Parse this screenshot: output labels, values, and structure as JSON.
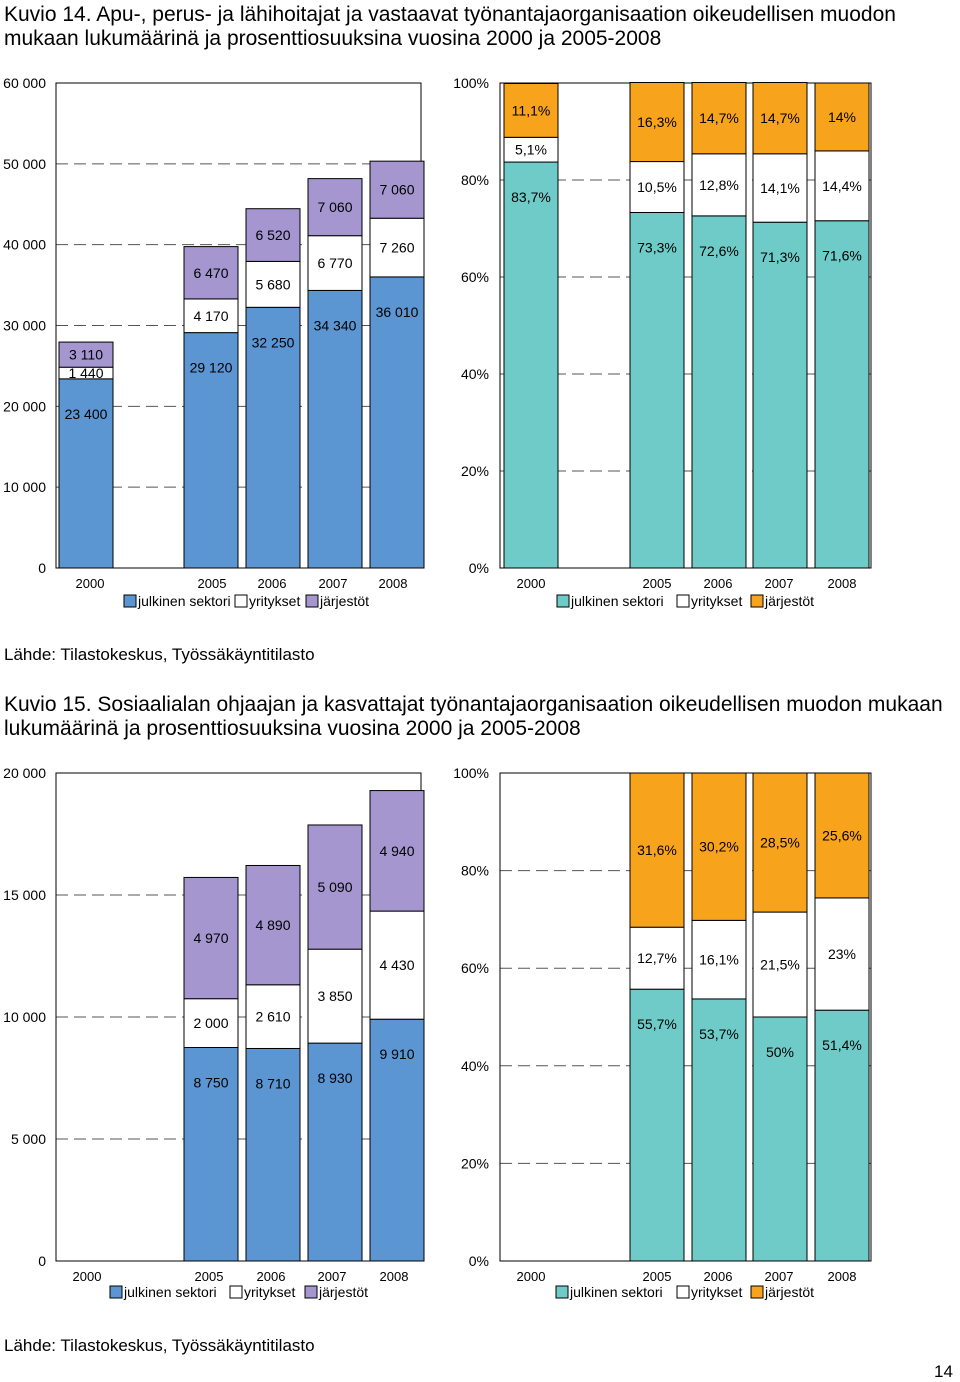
{
  "figure1": {
    "title_prefix": "Kuvio 14.",
    "title_text": "Apu-, perus- ja lähihoitajat ja vastaavat työnantajaorganisaation oikeudellisen muodon mukaan lukumäärinä ja prosenttiosuuksina vuosina 2000 ja 2005-2008",
    "source": "Lähde: Tilastokeskus, Työssäkäyntitilasto"
  },
  "figure2": {
    "title_prefix": "Kuvio 15.",
    "title_text": "Sosiaalialan ohjaajan ja kasvattajat työnantajaorganisaation oikeudellisen muodon mukaan lukumäärinä ja prosenttiosuuksina vuosina 2000 ja 2005-2008",
    "source": "Lähde: Tilastokeskus, Työssäkäyntitilasto"
  },
  "page_number": "14",
  "colors": {
    "julkinen_count": "#5b96d3",
    "julkinen_pct": "#6ecbc8",
    "yritykset": "#ffffff",
    "jarjestot_count": "#a596cf",
    "jarjestot_pct": "#f7a31c"
  },
  "chart_data": [
    {
      "id": "c1",
      "type": "bar",
      "stacked": true,
      "categories": [
        "2000",
        "2005",
        "2006",
        "2007",
        "2008"
      ],
      "ylim": [
        0,
        60000
      ],
      "yticks": [
        "0",
        "10 000",
        "20 000",
        "30 000",
        "40 000",
        "50 000",
        "60 000"
      ],
      "series": [
        {
          "name": "julkinen sektori",
          "values": [
            23400,
            29120,
            32250,
            34340,
            36010
          ],
          "labels": [
            "23 400",
            "29 120",
            "32 250",
            "34 340",
            "36 010"
          ]
        },
        {
          "name": "yritykset",
          "values": [
            1440,
            4170,
            5680,
            6770,
            7260
          ],
          "labels": [
            "1 440",
            "4 170",
            "5 680",
            "6 770",
            "7 260"
          ]
        },
        {
          "name": "järjestöt",
          "values": [
            3110,
            6470,
            6520,
            7060,
            7060
          ],
          "labels": [
            "3 110",
            "6 470",
            "6 520",
            "7 060",
            "7 060"
          ]
        }
      ],
      "legend": "bottom"
    },
    {
      "id": "c2",
      "type": "bar",
      "stacked": true,
      "categories": [
        "2000",
        "2005",
        "2006",
        "2007",
        "2008"
      ],
      "ylim": [
        0,
        100
      ],
      "yticks": [
        "0%",
        "20%",
        "40%",
        "60%",
        "80%",
        "100%"
      ],
      "series": [
        {
          "name": "julkinen sektori",
          "values": [
            83.7,
            73.3,
            72.6,
            71.3,
            71.6
          ],
          "labels": [
            "83,7%",
            "73,3%",
            "72,6%",
            "71,3%",
            "71,6%"
          ]
        },
        {
          "name": "yritykset",
          "values": [
            5.1,
            10.5,
            12.8,
            14.1,
            14.4
          ],
          "labels": [
            "5,1%",
            "10,5%",
            "12,8%",
            "14,1%",
            "14,4%"
          ]
        },
        {
          "name": "järjestöt",
          "values": [
            11.1,
            16.3,
            14.7,
            14.7,
            14
          ],
          "labels": [
            "11,1%",
            "16,3%",
            "14,7%",
            "14,7%",
            "14%"
          ]
        }
      ],
      "legend": "bottom"
    },
    {
      "id": "c3",
      "type": "bar",
      "stacked": true,
      "categories": [
        "2000",
        "2005",
        "2006",
        "2007",
        "2008"
      ],
      "ylim": [
        0,
        20000
      ],
      "yticks": [
        "0",
        "5 000",
        "10 000",
        "15 000",
        "20 000"
      ],
      "series": [
        {
          "name": "julkinen sektori",
          "values": [
            0,
            8750,
            8710,
            8930,
            9910
          ],
          "labels": [
            "",
            "8 750",
            "8 710",
            "8 930",
            "9 910"
          ]
        },
        {
          "name": "yritykset",
          "values": [
            0,
            2000,
            2610,
            3850,
            4430
          ],
          "labels": [
            "",
            "2 000",
            "2 610",
            "3 850",
            "4 430"
          ]
        },
        {
          "name": "järjestöt",
          "values": [
            0,
            4970,
            4890,
            5090,
            4940
          ],
          "labels": [
            "",
            "4 970",
            "4 890",
            "5 090",
            "4 940"
          ]
        }
      ],
      "legend": "bottom"
    },
    {
      "id": "c4",
      "type": "bar",
      "stacked": true,
      "categories": [
        "2000",
        "2005",
        "2006",
        "2007",
        "2008"
      ],
      "ylim": [
        0,
        100
      ],
      "yticks": [
        "0%",
        "20%",
        "40%",
        "60%",
        "80%",
        "100%"
      ],
      "series": [
        {
          "name": "julkinen sektori",
          "values": [
            0,
            55.7,
            53.7,
            50,
            51.4
          ],
          "labels": [
            "",
            "55,7%",
            "53,7%",
            "50%",
            "51,4%"
          ]
        },
        {
          "name": "yritykset",
          "values": [
            0,
            12.7,
            16.1,
            21.5,
            23
          ],
          "labels": [
            "",
            "12,7%",
            "16,1%",
            "21,5%",
            "23%"
          ]
        },
        {
          "name": "järjestöt",
          "values": [
            0,
            31.6,
            30.2,
            28.5,
            25.6
          ],
          "labels": [
            "",
            "31,6%",
            "30,2%",
            "28,5%",
            "25,6%"
          ]
        }
      ],
      "legend": "bottom"
    }
  ]
}
